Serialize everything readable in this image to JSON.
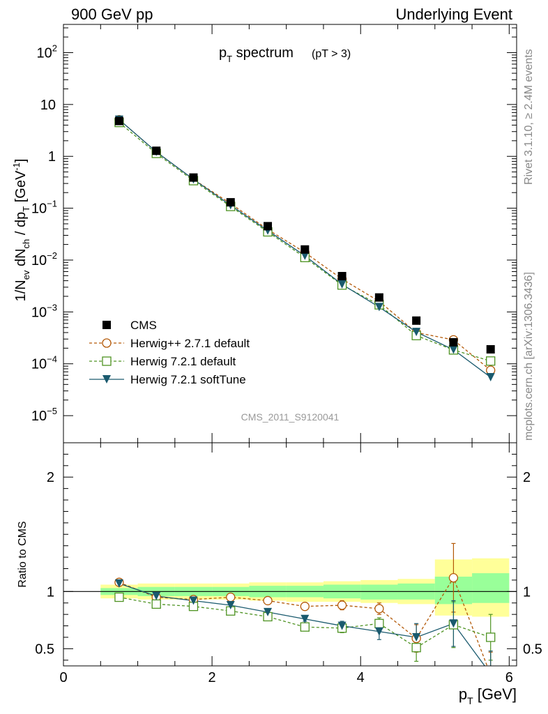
{
  "header": {
    "left": "900 GeV pp",
    "right": "Underlying Event"
  },
  "side_labels": {
    "rivet": "Rivet 3.1.10, ≥ 2.4M events",
    "mcplots": "mcplots.cern.ch [arXiv:1306.3436]"
  },
  "chart_data": [
    {
      "type": "scatter",
      "title_main": "p",
      "title_sub": "T",
      "title_rest": " spectrum",
      "title_cut": "(pT >  3)",
      "watermark": "CMS_2011_S9120041",
      "ylabel": "1/N_ev dN_ch / dp_T [GeV^-1]",
      "y_scale": "log",
      "ylim": [
        3e-06,
        350
      ],
      "xlim": [
        0,
        6.1
      ],
      "y_tick_labels": [
        {
          "value": 100,
          "base": "10",
          "exp": "2"
        },
        {
          "value": 10,
          "base": "10",
          "exp": ""
        },
        {
          "value": 1,
          "base": "1",
          "exp": ""
        },
        {
          "value": 0.1,
          "base": "10",
          "exp": "−1"
        },
        {
          "value": 0.01,
          "base": "10",
          "exp": "−2"
        },
        {
          "value": 0.001,
          "base": "10",
          "exp": "−3"
        },
        {
          "value": 0.0001,
          "base": "10",
          "exp": "−4"
        },
        {
          "value": 1e-05,
          "base": "10",
          "exp": "−5"
        }
      ],
      "x": [
        0.75,
        1.25,
        1.75,
        2.25,
        2.75,
        3.25,
        3.75,
        4.25,
        4.75,
        5.25,
        5.75
      ],
      "series": [
        {
          "name": "CMS",
          "color": "#000000",
          "style": "data",
          "values": [
            4.8,
            1.28,
            0.39,
            0.13,
            0.045,
            0.016,
            0.0049,
            0.0019,
            0.00068,
            0.00026,
            0.00019
          ]
        },
        {
          "name": "Herwig++ 2.7.1 default",
          "color": "#b35806",
          "style": "circle-dashed",
          "values": [
            5.1,
            1.22,
            0.36,
            0.123,
            0.039,
            0.014,
            0.0043,
            0.0016,
            0.0004,
            0.00029,
            7.5e-05
          ]
        },
        {
          "name": "Herwig 7.2.1 default",
          "color": "#4d9221",
          "style": "square-dashed",
          "values": [
            4.5,
            1.14,
            0.34,
            0.108,
            0.035,
            0.0112,
            0.0033,
            0.00137,
            0.00035,
            0.000185,
            0.000113
          ]
        },
        {
          "name": "Herwig 7.2.1 softTune",
          "color": "#1a5a6e",
          "style": "triangle-solid",
          "values": [
            5.1,
            1.22,
            0.36,
            0.114,
            0.037,
            0.0121,
            0.0034,
            0.00124,
            0.00041,
            0.000187,
            5.5e-05
          ]
        }
      ]
    },
    {
      "type": "line",
      "ylabel": "Ratio to CMS",
      "xlabel_main": "p",
      "xlabel_sub": "T",
      "xlabel_rest": " [GeV]",
      "ylim": [
        0.35,
        2.3
      ],
      "xlim": [
        0,
        6.1
      ],
      "x_ticks": [
        0,
        2,
        4,
        6
      ],
      "y_ticks": [
        0.5,
        1,
        2
      ],
      "x": [
        0.75,
        1.25,
        1.75,
        2.25,
        2.75,
        3.25,
        3.75,
        4.25,
        4.75,
        5.25,
        5.75
      ],
      "bands": {
        "edges": [
          0.5,
          1.0,
          1.5,
          2.0,
          2.5,
          3.0,
          3.5,
          4.0,
          4.5,
          5.0,
          5.5,
          6.0
        ],
        "yellow_lo": [
          0.94,
          0.93,
          0.93,
          0.93,
          0.92,
          0.91,
          0.91,
          0.9,
          0.89,
          0.79,
          0.78
        ],
        "yellow_hi": [
          1.06,
          1.07,
          1.07,
          1.07,
          1.08,
          1.08,
          1.09,
          1.1,
          1.11,
          1.28,
          1.29
        ],
        "green_lo": [
          0.97,
          0.96,
          0.96,
          0.96,
          0.95,
          0.95,
          0.94,
          0.93,
          0.93,
          0.89,
          0.9
        ],
        "green_hi": [
          1.03,
          1.04,
          1.04,
          1.04,
          1.05,
          1.05,
          1.06,
          1.06,
          1.07,
          1.13,
          1.16
        ],
        "yellow_color": "#ffff99",
        "green_color": "#99ff99"
      },
      "series": [
        {
          "name": "Herwig++ 2.7.1 default",
          "color": "#b35806",
          "style": "circle-dashed",
          "values": [
            1.08,
            0.95,
            0.93,
            0.95,
            0.92,
            0.87,
            0.88,
            0.85,
            0.59,
            1.12,
            0.27
          ],
          "err": [
            0.01,
            0.01,
            0.01,
            0.01,
            0.01,
            0.02,
            0.04,
            0.05,
            0.12,
            0.3,
            0.2
          ]
        },
        {
          "name": "Herwig 7.2.1 default",
          "color": "#4d9221",
          "style": "square-dashed",
          "values": [
            0.95,
            0.89,
            0.87,
            0.83,
            0.78,
            0.69,
            0.68,
            0.72,
            0.51,
            0.71,
            0.6
          ],
          "err": [
            0.01,
            0.01,
            0.01,
            0.01,
            0.01,
            0.02,
            0.04,
            0.05,
            0.12,
            0.2,
            0.2
          ]
        },
        {
          "name": "Herwig 7.2.1 softTune",
          "color": "#1a5a6e",
          "style": "triangle-solid",
          "values": [
            1.07,
            0.96,
            0.92,
            0.88,
            0.82,
            0.76,
            0.7,
            0.65,
            0.6,
            0.72,
            0.28
          ],
          "err": [
            0.01,
            0.01,
            0.01,
            0.01,
            0.01,
            0.02,
            0.04,
            0.07,
            0.12,
            0.2,
            0.2
          ]
        }
      ]
    }
  ]
}
